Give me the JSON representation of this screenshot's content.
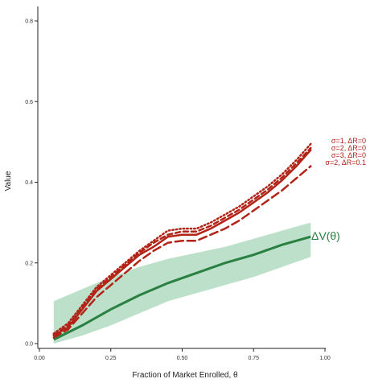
{
  "chart_data": {
    "type": "line",
    "xlabel": "Fraction of Market Enrolled, θ",
    "ylabel": "Value",
    "xlim": [
      0,
      1
    ],
    "ylim": [
      0,
      0.8
    ],
    "x_ticks": [
      "0.00",
      "0.25",
      "0.50",
      "0.75",
      "1.00"
    ],
    "y_ticks": [
      "0.0",
      "0.2",
      "0.4",
      "0.6",
      "0.8"
    ],
    "x_tick_values": [
      0,
      0.25,
      0.5,
      0.75,
      1.0
    ],
    "y_tick_values": [
      0,
      0.2,
      0.4,
      0.6,
      0.8
    ],
    "grid": false,
    "colors": {
      "red": "#b22418",
      "green": "#2a8040",
      "band": "#8fcca6"
    },
    "band": {
      "name": "ΔV(θ)",
      "x": [
        0.05,
        0.15,
        0.25,
        0.35,
        0.45,
        0.55,
        0.65,
        0.75,
        0.85,
        0.95
      ],
      "lower": [
        0.0,
        0.02,
        0.045,
        0.075,
        0.105,
        0.125,
        0.145,
        0.165,
        0.19,
        0.215
      ],
      "upper": [
        0.105,
        0.135,
        0.165,
        0.19,
        0.21,
        0.225,
        0.24,
        0.26,
        0.28,
        0.3
      ],
      "mean": [
        0.01,
        0.045,
        0.085,
        0.12,
        0.15,
        0.175,
        0.2,
        0.22,
        0.245,
        0.265
      ]
    },
    "label_delta_v": "ΔV(θ)",
    "series": [
      {
        "name": "σ=1, ΔR=0",
        "style": "solid",
        "x": [
          0.05,
          0.1,
          0.15,
          0.2,
          0.25,
          0.3,
          0.35,
          0.4,
          0.45,
          0.5,
          0.55,
          0.6,
          0.65,
          0.7,
          0.75,
          0.8,
          0.85,
          0.9,
          0.95
        ],
        "y": [
          0.02,
          0.04,
          0.085,
          0.13,
          0.16,
          0.19,
          0.22,
          0.24,
          0.265,
          0.27,
          0.27,
          0.285,
          0.305,
          0.325,
          0.35,
          0.375,
          0.405,
          0.44,
          0.48
        ]
      },
      {
        "name": "σ=2, ΔR=0",
        "style": "dotted",
        "x": [
          0.05,
          0.1,
          0.15,
          0.2,
          0.25,
          0.3,
          0.35,
          0.4,
          0.45,
          0.5,
          0.55,
          0.6,
          0.65,
          0.7,
          0.75,
          0.8,
          0.85,
          0.9,
          0.95
        ],
        "y": [
          0.025,
          0.05,
          0.095,
          0.14,
          0.17,
          0.2,
          0.23,
          0.255,
          0.28,
          0.285,
          0.285,
          0.3,
          0.32,
          0.34,
          0.365,
          0.39,
          0.42,
          0.455,
          0.495
        ]
      },
      {
        "name": "σ=3, ΔR=0",
        "style": "dashed",
        "x": [
          0.05,
          0.1,
          0.15,
          0.2,
          0.25,
          0.3,
          0.35,
          0.4,
          0.45,
          0.5,
          0.55,
          0.6,
          0.65,
          0.7,
          0.75,
          0.8,
          0.85,
          0.9,
          0.95
        ],
        "y": [
          0.022,
          0.045,
          0.09,
          0.135,
          0.165,
          0.195,
          0.225,
          0.25,
          0.27,
          0.278,
          0.278,
          0.292,
          0.312,
          0.332,
          0.357,
          0.382,
          0.412,
          0.447,
          0.485
        ]
      },
      {
        "name": "σ=2, ΔR=0.1",
        "style": "longdash",
        "x": [
          0.05,
          0.1,
          0.15,
          0.2,
          0.25,
          0.3,
          0.35,
          0.4,
          0.45,
          0.5,
          0.55,
          0.6,
          0.65,
          0.7,
          0.75,
          0.8,
          0.85,
          0.9,
          0.95
        ],
        "y": [
          0.015,
          0.035,
          0.075,
          0.115,
          0.145,
          0.175,
          0.205,
          0.23,
          0.25,
          0.255,
          0.255,
          0.27,
          0.285,
          0.305,
          0.33,
          0.355,
          0.38,
          0.41,
          0.44
        ]
      }
    ]
  }
}
